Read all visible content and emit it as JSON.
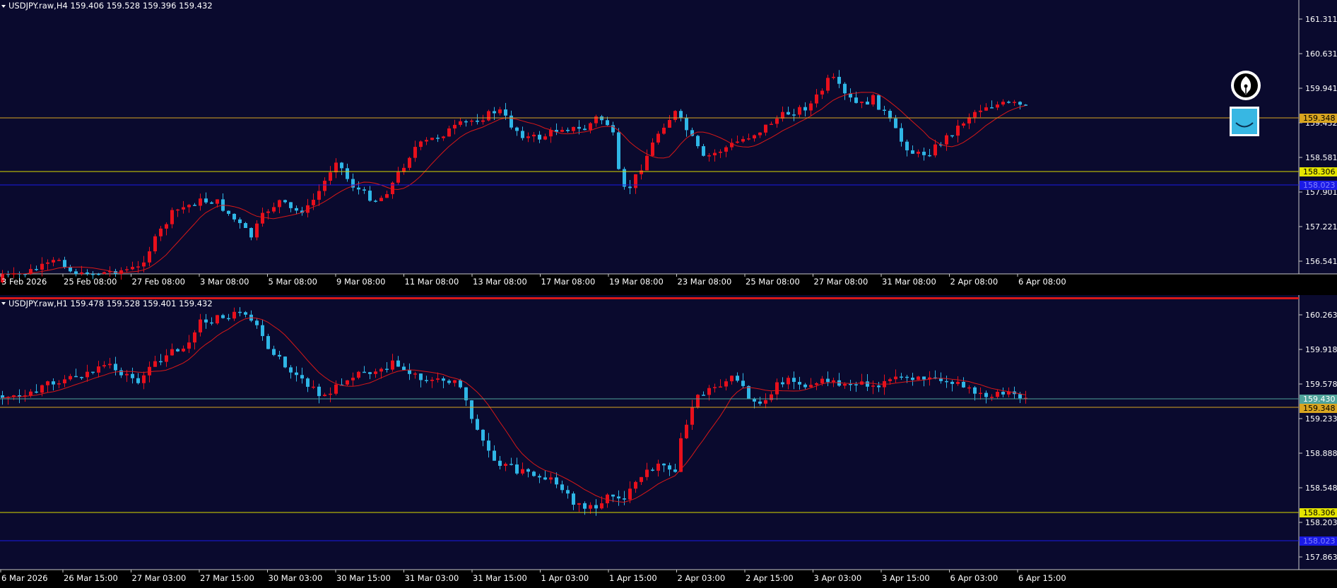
{
  "top_chart": {
    "header": "USDJPY.raw,H4  159.406 159.528 159.396 159.432",
    "y_labels": [
      "161.311",
      "160.631",
      "159.941",
      "159.432",
      "158.581",
      "157.901",
      "157.221",
      "156.541"
    ],
    "x_labels": [
      "3 Feb 2026",
      "25 Feb 08:00",
      "27 Feb 08:00",
      "3 Mar 08:00",
      "5 Mar 08:00",
      "9 Mar 08:00",
      "11 Mar 08:00",
      "13 Mar 08:00",
      "17 Mar 08:00",
      "19 Mar 08:00",
      "23 Mar 08:00",
      "25 Mar 08:00",
      "27 Mar 08:00",
      "31 Mar 08:00",
      "2 Apr 08:00",
      "6 Apr 08:00"
    ],
    "price_tags": [
      "159.348",
      "158.306",
      "158.023"
    ]
  },
  "bottom_chart": {
    "header": "USDJPY.raw,H1  159.478 159.528 159.401 159.432",
    "y_labels": [
      "160.263",
      "159.918",
      "159.578",
      "159.233",
      "158.888",
      "158.548",
      "158.203",
      "157.863"
    ],
    "x_labels": [
      "6 Mar 2026",
      "26 Mar 15:00",
      "27 Mar 03:00",
      "27 Mar 15:00",
      "30 Mar 03:00",
      "30 Mar 15:00",
      "31 Mar 03:00",
      "31 Mar 15:00",
      "1 Apr 03:00",
      "1 Apr 15:00",
      "2 Apr 03:00",
      "2 Apr 15:00",
      "3 Apr 03:00",
      "3 Apr 15:00",
      "6 Apr 03:00",
      "6 Apr 15:00"
    ],
    "price_tags": [
      "159.430",
      "159.348",
      "158.306",
      "158.023"
    ]
  },
  "colors": {
    "background": "#0a0a2e",
    "bull": "#e8101c",
    "bear": "#2fb6e6",
    "ma": "#d81818",
    "level_gold": "#d9a520",
    "level_yellow": "#e6e600",
    "level_blue": "#1a1ae6",
    "level_teal": "#4fa39b"
  },
  "icons": [
    "fountain-pen-icon",
    "smile-icon"
  ]
}
